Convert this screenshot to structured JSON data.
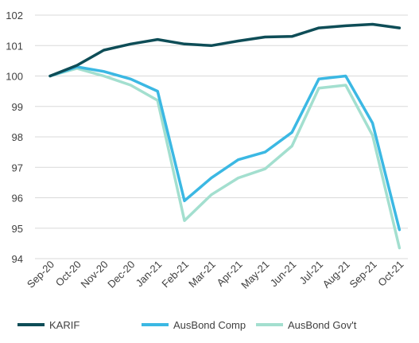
{
  "chart_data": {
    "type": "line",
    "title": "",
    "xlabel": "",
    "ylabel": "",
    "ylim": [
      94,
      102
    ],
    "yticks": [
      94,
      95,
      96,
      97,
      98,
      99,
      100,
      101,
      102
    ],
    "grid": true,
    "legend_position": "bottom",
    "categories": [
      "Sep-20",
      "Oct-20",
      "Nov-20",
      "Dec-20",
      "Jan-21",
      "Feb-21",
      "Mar-21",
      "Apr-21",
      "May-21",
      "Jun-21",
      "Jul-21",
      "Aug-21",
      "Sep-21",
      "Oct-21"
    ],
    "series": [
      {
        "name": "KARIF",
        "color": "#0e4d57",
        "values": [
          100.0,
          100.35,
          100.85,
          101.05,
          101.2,
          101.05,
          101.0,
          101.15,
          101.28,
          101.3,
          101.58,
          101.65,
          101.7,
          101.58
        ]
      },
      {
        "name": "AusBond Comp",
        "color": "#3bb8e3",
        "values": [
          100.0,
          100.3,
          100.15,
          99.9,
          99.5,
          95.9,
          96.65,
          97.25,
          97.5,
          98.15,
          99.9,
          100.0,
          98.45,
          94.95
        ]
      },
      {
        "name": "AusBond Gov't",
        "color": "#a3dfcf",
        "values": [
          100.0,
          100.25,
          100.0,
          99.7,
          99.2,
          95.25,
          96.1,
          96.65,
          96.95,
          97.7,
          99.6,
          99.7,
          98.05,
          94.35
        ]
      }
    ]
  }
}
